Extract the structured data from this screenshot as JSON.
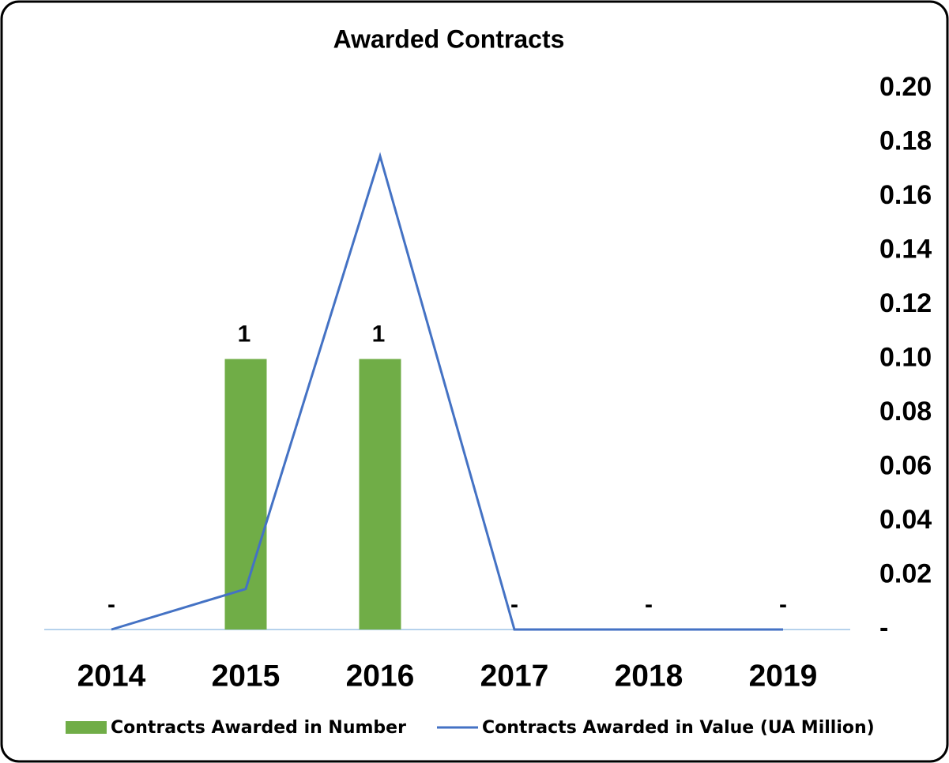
{
  "chart_data": {
    "type": "bar_line",
    "title": "Awarded Contracts",
    "categories": [
      "2014",
      "2015",
      "2016",
      "2017",
      "2018",
      "2019"
    ],
    "series": [
      {
        "name": "Contracts Awarded in Number",
        "type": "bar",
        "color": "#70ad47",
        "values": [
          0,
          1,
          1,
          0,
          0,
          0
        ],
        "value_labels": [
          "-",
          "1",
          "1",
          "-",
          "-",
          "-"
        ]
      },
      {
        "name": "Contracts Awarded in Value (UA Million)",
        "type": "line",
        "axis": "y2",
        "color": "#4472c4",
        "values": [
          0,
          0.015,
          0.175,
          0,
          0,
          0
        ]
      }
    ],
    "ylim": [
      0,
      2
    ],
    "y2lim": [
      0,
      0.2
    ],
    "y2ticks": [
      {
        "value": 0,
        "label": "-"
      },
      0.02,
      0.04,
      0.06,
      0.08,
      {
        "value": 0.1,
        "label": "0.10"
      },
      0.12,
      0.14,
      0.16,
      0.18,
      {
        "value": 0.2,
        "label": "0.20"
      }
    ],
    "legend": "bottom"
  }
}
